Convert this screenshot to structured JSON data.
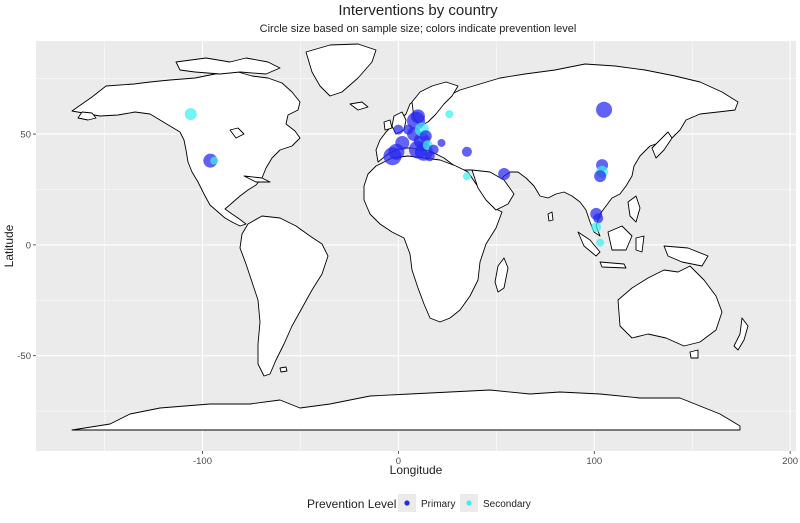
{
  "chart_data": {
    "type": "scatter",
    "title": "Interventions by country",
    "subtitle": "Circle size based on sample size; colors indicate prevention level",
    "xlabel": "Longitude",
    "ylabel": "Latitude",
    "xlim": [
      -185,
      203
    ],
    "ylim": [
      -93,
      92
    ],
    "x_ticks": [
      -100,
      0,
      100,
      200
    ],
    "y_ticks": [
      -50,
      0,
      50
    ],
    "x_tick_labels": [
      "-100",
      "0",
      "100",
      "200"
    ],
    "y_tick_labels": [
      "-50",
      "0",
      "50"
    ],
    "grid": true,
    "legend": {
      "title": "Prevention Level",
      "position": "bottom",
      "entries": [
        {
          "label": "Primary",
          "color": "#2626f0"
        },
        {
          "label": "Secondary",
          "color": "#3cf0f0"
        }
      ]
    },
    "colors": {
      "Primary": "#2626f0",
      "Secondary": "#3cf0f0",
      "panel": "#ebebeb",
      "grid": "#ffffff",
      "land": "#ffffff",
      "border": "#000000"
    },
    "points": [
      {
        "lon": -106,
        "lat": 59,
        "size": 6,
        "level": "Secondary"
      },
      {
        "lon": -96,
        "lat": 38,
        "size": 7,
        "level": "Primary"
      },
      {
        "lon": -94,
        "lat": 38,
        "size": 4,
        "level": "Secondary"
      },
      {
        "lon": -3,
        "lat": 40,
        "size": 9,
        "level": "Primary"
      },
      {
        "lon": -1,
        "lat": 42,
        "size": 8,
        "level": "Primary"
      },
      {
        "lon": 0,
        "lat": 52,
        "size": 5,
        "level": "Primary"
      },
      {
        "lon": 2,
        "lat": 46,
        "size": 7,
        "level": "Primary"
      },
      {
        "lon": 5,
        "lat": 52,
        "size": 5,
        "level": "Primary"
      },
      {
        "lon": 8,
        "lat": 50,
        "size": 7,
        "level": "Primary"
      },
      {
        "lon": 9,
        "lat": 56,
        "size": 9,
        "level": "Primary"
      },
      {
        "lon": 10,
        "lat": 58,
        "size": 7,
        "level": "Primary"
      },
      {
        "lon": 10,
        "lat": 43,
        "size": 9,
        "level": "Primary"
      },
      {
        "lon": 12,
        "lat": 47,
        "size": 8,
        "level": "Primary"
      },
      {
        "lon": 12,
        "lat": 52,
        "size": 7,
        "level": "Secondary"
      },
      {
        "lon": 13,
        "lat": 42,
        "size": 9,
        "level": "Primary"
      },
      {
        "lon": 14,
        "lat": 49,
        "size": 6,
        "level": "Primary"
      },
      {
        "lon": 15,
        "lat": 45,
        "size": 5,
        "level": "Secondary"
      },
      {
        "lon": 16,
        "lat": 40,
        "size": 5,
        "level": "Primary"
      },
      {
        "lon": 18,
        "lat": 43,
        "size": 5,
        "level": "Primary"
      },
      {
        "lon": 22,
        "lat": 46,
        "size": 4,
        "level": "Primary"
      },
      {
        "lon": 26,
        "lat": 59,
        "size": 4,
        "level": "Secondary"
      },
      {
        "lon": 35,
        "lat": 42,
        "size": 5,
        "level": "Primary"
      },
      {
        "lon": 35,
        "lat": 31,
        "size": 4,
        "level": "Secondary"
      },
      {
        "lon": 54,
        "lat": 32,
        "size": 6,
        "level": "Primary"
      },
      {
        "lon": 105,
        "lat": 61,
        "size": 8,
        "level": "Primary"
      },
      {
        "lon": 104,
        "lat": 36,
        "size": 6,
        "level": "Primary"
      },
      {
        "lon": 104,
        "lat": 33,
        "size": 6,
        "level": "Secondary"
      },
      {
        "lon": 103,
        "lat": 31,
        "size": 6,
        "level": "Primary"
      },
      {
        "lon": 101,
        "lat": 14,
        "size": 6,
        "level": "Primary"
      },
      {
        "lon": 102,
        "lat": 12,
        "size": 5,
        "level": "Primary"
      },
      {
        "lon": 101,
        "lat": 8,
        "size": 5,
        "level": "Secondary"
      },
      {
        "lon": 103,
        "lat": 1,
        "size": 4,
        "level": "Secondary"
      }
    ]
  }
}
